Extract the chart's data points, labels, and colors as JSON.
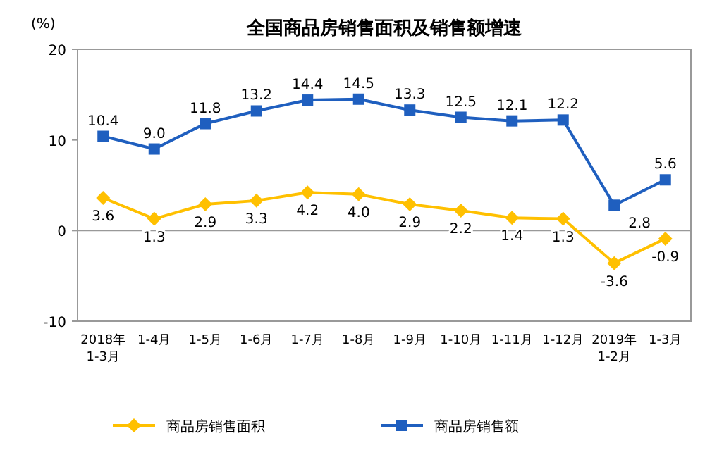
{
  "chart_data": {
    "type": "line",
    "title": "全国商品房销售面积及销售额增速",
    "ylabel": "(%)",
    "categories": [
      "2018年\n1-3月",
      "1-4月",
      "1-5月",
      "1-6月",
      "1-7月",
      "1-8月",
      "1-9月",
      "1-10月",
      "1-11月",
      "1-12月",
      "2019年\n1-2月",
      "1-3月"
    ],
    "series": [
      {
        "name": "商品房销售面积",
        "color": "#ffc000",
        "marker": "diamond",
        "values": [
          3.6,
          1.3,
          2.9,
          3.3,
          4.2,
          4.0,
          2.9,
          2.2,
          1.4,
          1.3,
          -3.6,
          -0.9
        ],
        "value_labels": [
          "3.6",
          "1.3",
          "2.9",
          "3.3",
          "4.2",
          "4.0",
          "2.9",
          "2.2",
          "1.4",
          "1.3",
          "-3.6",
          "-0.9"
        ]
      },
      {
        "name": "商品房销售额",
        "color": "#1f5fbf",
        "marker": "square",
        "values": [
          10.4,
          9.0,
          11.8,
          13.2,
          14.4,
          14.5,
          13.3,
          12.5,
          12.1,
          12.2,
          2.8,
          5.6
        ],
        "value_labels": [
          "10.4",
          "9.0",
          "11.8",
          "13.2",
          "14.4",
          "14.5",
          "13.3",
          "12.5",
          "12.1",
          "12.2",
          "2.8",
          "5.6"
        ]
      }
    ],
    "ylim": [
      -10,
      20
    ],
    "yticks": [
      -10,
      0,
      10,
      20
    ],
    "ref_lines": [
      {
        "axis": "y",
        "value": 0,
        "color": "#999999"
      }
    ],
    "legend": "bottom",
    "line_style": "solid"
  }
}
